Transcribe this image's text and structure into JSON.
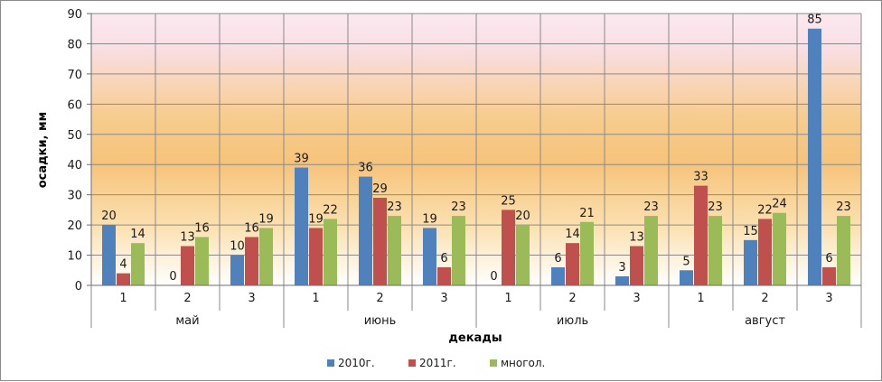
{
  "chart_data": {
    "type": "bar",
    "title": "",
    "xlabel": "декады",
    "ylabel": "осадки, мм",
    "ylim": [
      0,
      90
    ],
    "yticks": [
      0,
      10,
      20,
      30,
      40,
      50,
      60,
      70,
      80,
      90
    ],
    "categories": [
      "1",
      "2",
      "3",
      "1",
      "2",
      "3",
      "1",
      "2",
      "3",
      "1",
      "2",
      "3"
    ],
    "groups": [
      {
        "label": "май",
        "count": 3
      },
      {
        "label": "июнь",
        "count": 3
      },
      {
        "label": "июль",
        "count": 3
      },
      {
        "label": "август",
        "count": 3
      }
    ],
    "series": [
      {
        "name": "2010г.",
        "color": "#4f81bd",
        "values": [
          20,
          0,
          10,
          39,
          36,
          19,
          0,
          6,
          3,
          5,
          15,
          85
        ]
      },
      {
        "name": "2011г.",
        "color": "#c0504d",
        "values": [
          4,
          13,
          16,
          19,
          29,
          6,
          25,
          14,
          13,
          33,
          22,
          6
        ]
      },
      {
        "name": "многол.",
        "color": "#9bbb59",
        "values": [
          14,
          16,
          19,
          22,
          23,
          23,
          20,
          21,
          23,
          23,
          24,
          23
        ]
      }
    ],
    "legend_position": "bottom",
    "grid": true
  }
}
